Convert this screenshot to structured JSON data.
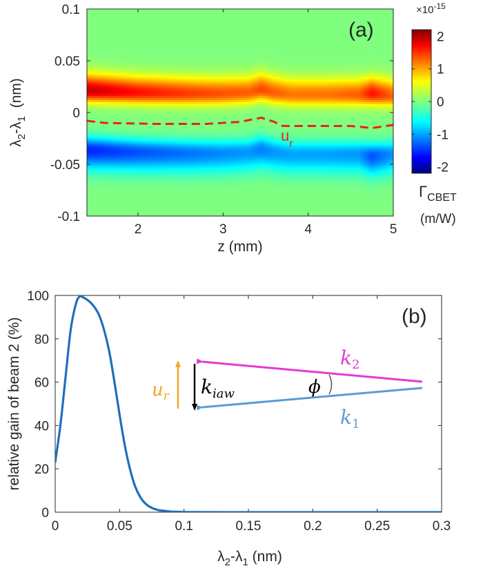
{
  "chart_data": [
    {
      "panel": "(a)",
      "type": "heatmap",
      "xlabel": "z (mm)",
      "ylabel": [
        "λ",
        "2",
        "-λ",
        "1",
        "  (nm)"
      ],
      "xlim": [
        1.4,
        5.0
      ],
      "ylim": [
        -0.1,
        0.1
      ],
      "xticks": [
        "2",
        "3",
        "4",
        "5"
      ],
      "xtick_values": [
        2,
        3,
        4,
        5
      ],
      "yticks": [
        "0.1",
        "0.05",
        "0",
        "-0.05",
        "-0.1"
      ],
      "ytick_values": [
        0.1,
        0.05,
        0,
        -0.05,
        -0.1
      ],
      "colorbar": {
        "label": [
          "Γ",
          "CBET",
          "(m/W)"
        ],
        "exponent": [
          "×10",
          "-15"
        ],
        "ticks": [
          "2",
          "1",
          "0",
          "-1",
          "-2"
        ],
        "tick_values": [
          2,
          1,
          0,
          -1,
          -2
        ],
        "range": [
          -2.2,
          2.2
        ],
        "colormap": "jet"
      },
      "positive_peak": {
        "z": [
          1.4,
          2.0,
          2.6,
          3.0,
          3.3,
          3.45,
          3.6,
          3.8,
          4.2,
          4.6,
          4.75,
          5.0
        ],
        "center": [
          0.021,
          0.019,
          0.018,
          0.018,
          0.019,
          0.022,
          0.019,
          0.017,
          0.017,
          0.017,
          0.018,
          0.016
        ],
        "amplitude": [
          1.9,
          1.6,
          1.4,
          1.3,
          1.25,
          1.35,
          1.25,
          1.15,
          1.15,
          1.25,
          1.6,
          1.2
        ]
      },
      "negative_peak": {
        "z": [
          1.4,
          2.0,
          2.6,
          3.0,
          3.3,
          3.45,
          3.6,
          3.8,
          4.2,
          4.6,
          4.75,
          5.0
        ],
        "center": [
          -0.036,
          -0.038,
          -0.039,
          -0.039,
          -0.038,
          -0.035,
          -0.038,
          -0.04,
          -0.04,
          -0.04,
          -0.042,
          -0.04
        ],
        "amplitude": [
          -1.5,
          -1.3,
          -1.15,
          -1.05,
          -1.0,
          -1.1,
          -1.0,
          -0.95,
          -0.95,
          -1.0,
          -1.3,
          -1.0
        ]
      },
      "ur_line": {
        "name": "u",
        "name_sub": "r",
        "color": "#e8231b",
        "style": "dashed",
        "z": [
          1.4,
          1.6,
          2.2,
          2.8,
          3.2,
          3.45,
          3.6,
          3.7,
          4.0,
          4.5,
          4.75,
          5.0
        ],
        "y": [
          -0.008,
          -0.01,
          -0.011,
          -0.011,
          -0.009,
          -0.005,
          -0.009,
          -0.013,
          -0.013,
          -0.013,
          -0.015,
          -0.012
        ]
      }
    },
    {
      "panel": "(b)",
      "type": "line",
      "xlabel": [
        "λ",
        "2",
        "-λ",
        "1",
        " (nm)"
      ],
      "ylabel": "relative gain of beam 2 (%)",
      "xlim": [
        0,
        0.3
      ],
      "ylim": [
        0,
        100
      ],
      "xticks": [
        "0",
        "0.05",
        "0.1",
        "0.15",
        "0.2",
        "0.25",
        "0.3"
      ],
      "xtick_values": [
        0,
        0.05,
        0.1,
        0.15,
        0.2,
        0.25,
        0.3
      ],
      "yticks": [
        "100",
        "80",
        "60",
        "40",
        "20",
        "0"
      ],
      "ytick_values": [
        100,
        80,
        60,
        40,
        20,
        0
      ],
      "series": [
        {
          "color": "#1f6fb9",
          "x": [
            0.0,
            0.004,
            0.008,
            0.012,
            0.016,
            0.019,
            0.022,
            0.026,
            0.03,
            0.034,
            0.038,
            0.042,
            0.046,
            0.05,
            0.054,
            0.058,
            0.062,
            0.066,
            0.07,
            0.075,
            0.08,
            0.085,
            0.09,
            0.095,
            0.1,
            0.11,
            0.13,
            0.16,
            0.2,
            0.25,
            0.3
          ],
          "y": [
            23,
            40,
            62,
            84,
            96,
            99.5,
            99,
            97.5,
            95,
            91,
            84,
            74,
            60,
            45,
            31,
            20,
            12,
            7,
            4,
            2,
            1,
            0.6,
            0.3,
            0.2,
            0.1,
            0.05,
            0,
            0,
            0,
            0,
            0
          ]
        }
      ],
      "inset": {
        "k2": {
          "base": "k",
          "sub": "2",
          "color": "#e33ad6"
        },
        "k1": {
          "base": "k",
          "sub": "1",
          "color": "#5b9bd5"
        },
        "kiaw": {
          "base": "k",
          "sub": "iaw",
          "color": "#000000"
        },
        "ur": {
          "base": "u",
          "sub": "r",
          "color": "#f5a623"
        },
        "angle": "ϕ"
      }
    }
  ]
}
